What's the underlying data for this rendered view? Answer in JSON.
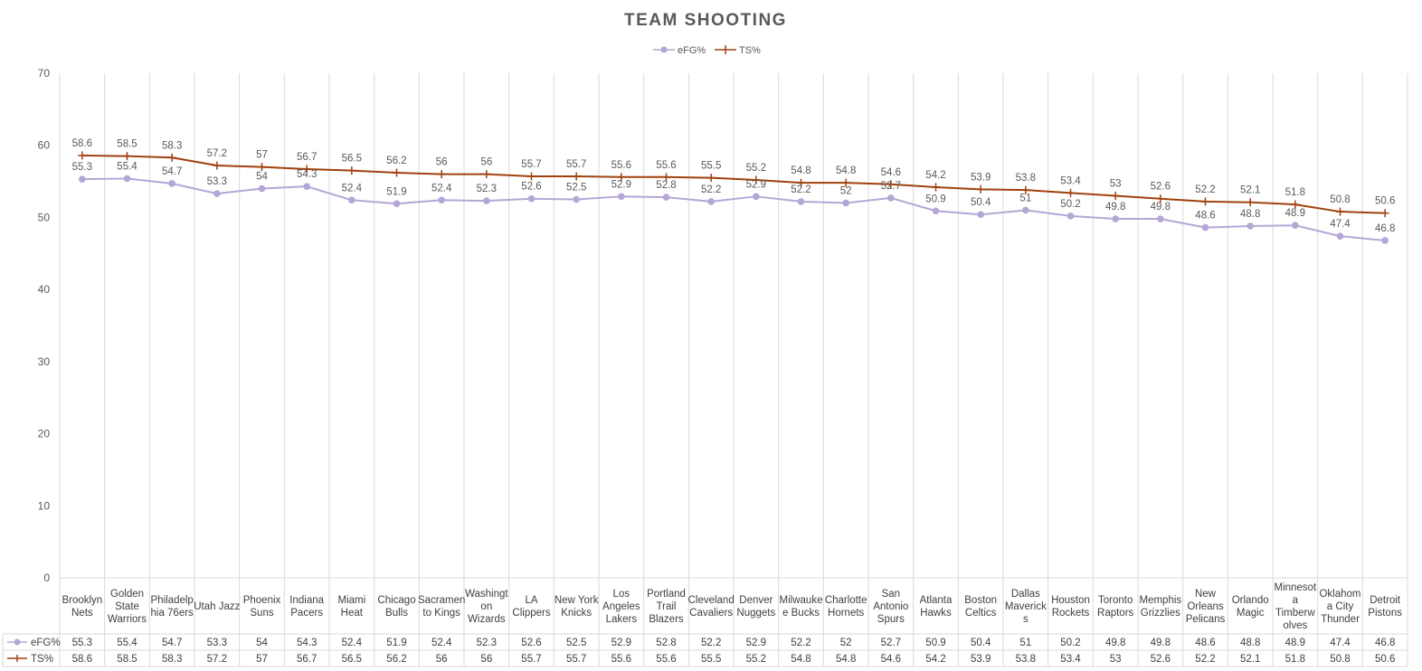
{
  "chart_data": {
    "type": "line",
    "title": "TEAM SHOOTING",
    "legend_position": "top",
    "grid": true,
    "ylim": [
      0,
      70
    ],
    "yticks": [
      0,
      10,
      20,
      30,
      40,
      50,
      60,
      70
    ],
    "data_table": true,
    "categories": [
      [
        "Brooklyn",
        "Nets"
      ],
      [
        "Golden",
        "State",
        "Warriors"
      ],
      [
        "Philadelp",
        "hia 76ers"
      ],
      [
        "Utah Jazz"
      ],
      [
        "Phoenix",
        "Suns"
      ],
      [
        "Indiana",
        "Pacers"
      ],
      [
        "Miami",
        "Heat"
      ],
      [
        "Chicago",
        "Bulls"
      ],
      [
        "Sacramen",
        "to Kings"
      ],
      [
        "Washingt",
        "on",
        "Wizards"
      ],
      [
        "LA",
        "Clippers"
      ],
      [
        "New York",
        "Knicks"
      ],
      [
        "Los",
        "Angeles",
        "Lakers"
      ],
      [
        "Portland",
        "Trail",
        "Blazers"
      ],
      [
        "Cleveland",
        "Cavaliers"
      ],
      [
        "Denver",
        "Nuggets"
      ],
      [
        "Milwauke",
        "e Bucks"
      ],
      [
        "Charlotte",
        "Hornets"
      ],
      [
        "San",
        "Antonio",
        "Spurs"
      ],
      [
        "Atlanta",
        "Hawks"
      ],
      [
        "Boston",
        "Celtics"
      ],
      [
        "Dallas",
        "Maverick",
        "s"
      ],
      [
        "Houston",
        "Rockets"
      ],
      [
        "Toronto",
        "Raptors"
      ],
      [
        "Memphis",
        "Grizzlies"
      ],
      [
        "New",
        "Orleans",
        "Pelicans"
      ],
      [
        "Orlando",
        "Magic"
      ],
      [
        "Minnesot",
        "a",
        "Timberw",
        "olves"
      ],
      [
        "Oklahom",
        "a City",
        "Thunder"
      ],
      [
        "Detroit",
        "Pistons"
      ]
    ],
    "series": [
      {
        "name": "eFG%",
        "color": "#b4a7d6",
        "marker": "circle",
        "values": [
          55.3,
          55.4,
          54.7,
          53.3,
          54,
          54.3,
          52.4,
          51.9,
          52.4,
          52.3,
          52.6,
          52.5,
          52.9,
          52.8,
          52.2,
          52.9,
          52.2,
          52,
          52.7,
          50.9,
          50.4,
          51,
          50.2,
          49.8,
          49.8,
          48.6,
          48.8,
          48.9,
          47.4,
          46.8
        ]
      },
      {
        "name": "TS%",
        "color": "#a0410d",
        "marker": "plus",
        "values": [
          58.6,
          58.5,
          58.3,
          57.2,
          57,
          56.7,
          56.5,
          56.2,
          56,
          56,
          55.7,
          55.7,
          55.6,
          55.6,
          55.5,
          55.2,
          54.8,
          54.8,
          54.6,
          54.2,
          53.9,
          53.8,
          53.4,
          53,
          52.6,
          52.2,
          52.1,
          51.8,
          50.8,
          50.6
        ]
      }
    ]
  }
}
